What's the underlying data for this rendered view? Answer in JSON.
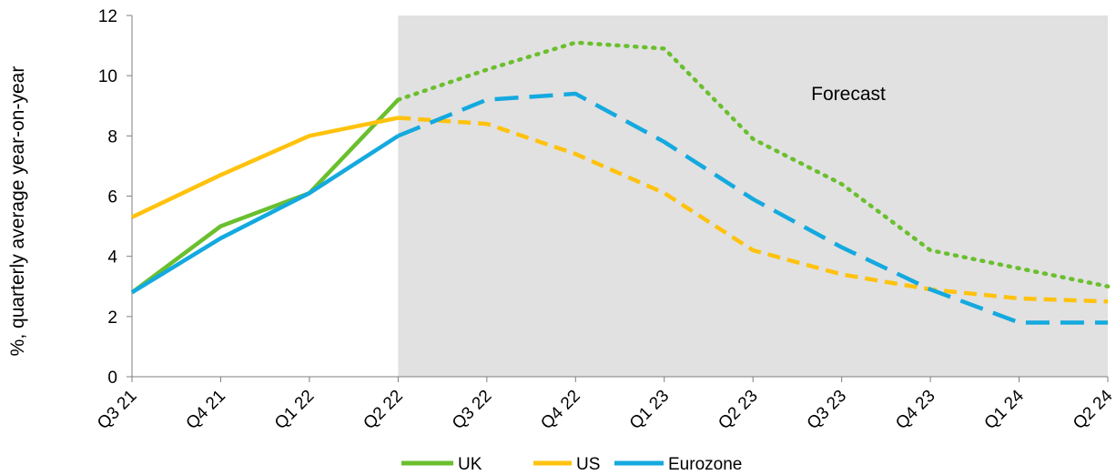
{
  "chart_data": {
    "type": "line",
    "title": "",
    "xlabel": "",
    "ylabel": "%, quarterly average year-on-year",
    "categories": [
      "Q3 21",
      "Q4 21",
      "Q1 22",
      "Q2 22",
      "Q3 22",
      "Q4 22",
      "Q1 23",
      "Q2 23",
      "Q3 23",
      "Q4 23",
      "Q1 24",
      "Q2 24"
    ],
    "ylim": [
      0,
      12
    ],
    "yticks": [
      "0",
      "2",
      "4",
      "6",
      "8",
      "10",
      "12"
    ],
    "grid": false,
    "legend_position": "bottom",
    "forecast_start_index": 3,
    "annotation": "Forecast",
    "series": [
      {
        "name": "UK",
        "color": "#6ABF2E",
        "values": [
          2.8,
          5.0,
          6.1,
          9.2,
          10.2,
          11.1,
          10.9,
          7.9,
          6.4,
          4.2,
          3.6,
          3.0
        ]
      },
      {
        "name": "US",
        "color": "#FFC20E",
        "values": [
          5.3,
          6.7,
          8.0,
          8.6,
          8.4,
          7.4,
          6.1,
          4.2,
          3.4,
          2.9,
          2.6,
          2.5
        ]
      },
      {
        "name": "Eurozone",
        "color": "#14A9DF",
        "values": [
          2.8,
          4.6,
          6.1,
          8.0,
          9.2,
          9.4,
          7.8,
          5.9,
          4.3,
          2.9,
          1.8,
          1.8
        ]
      }
    ]
  }
}
